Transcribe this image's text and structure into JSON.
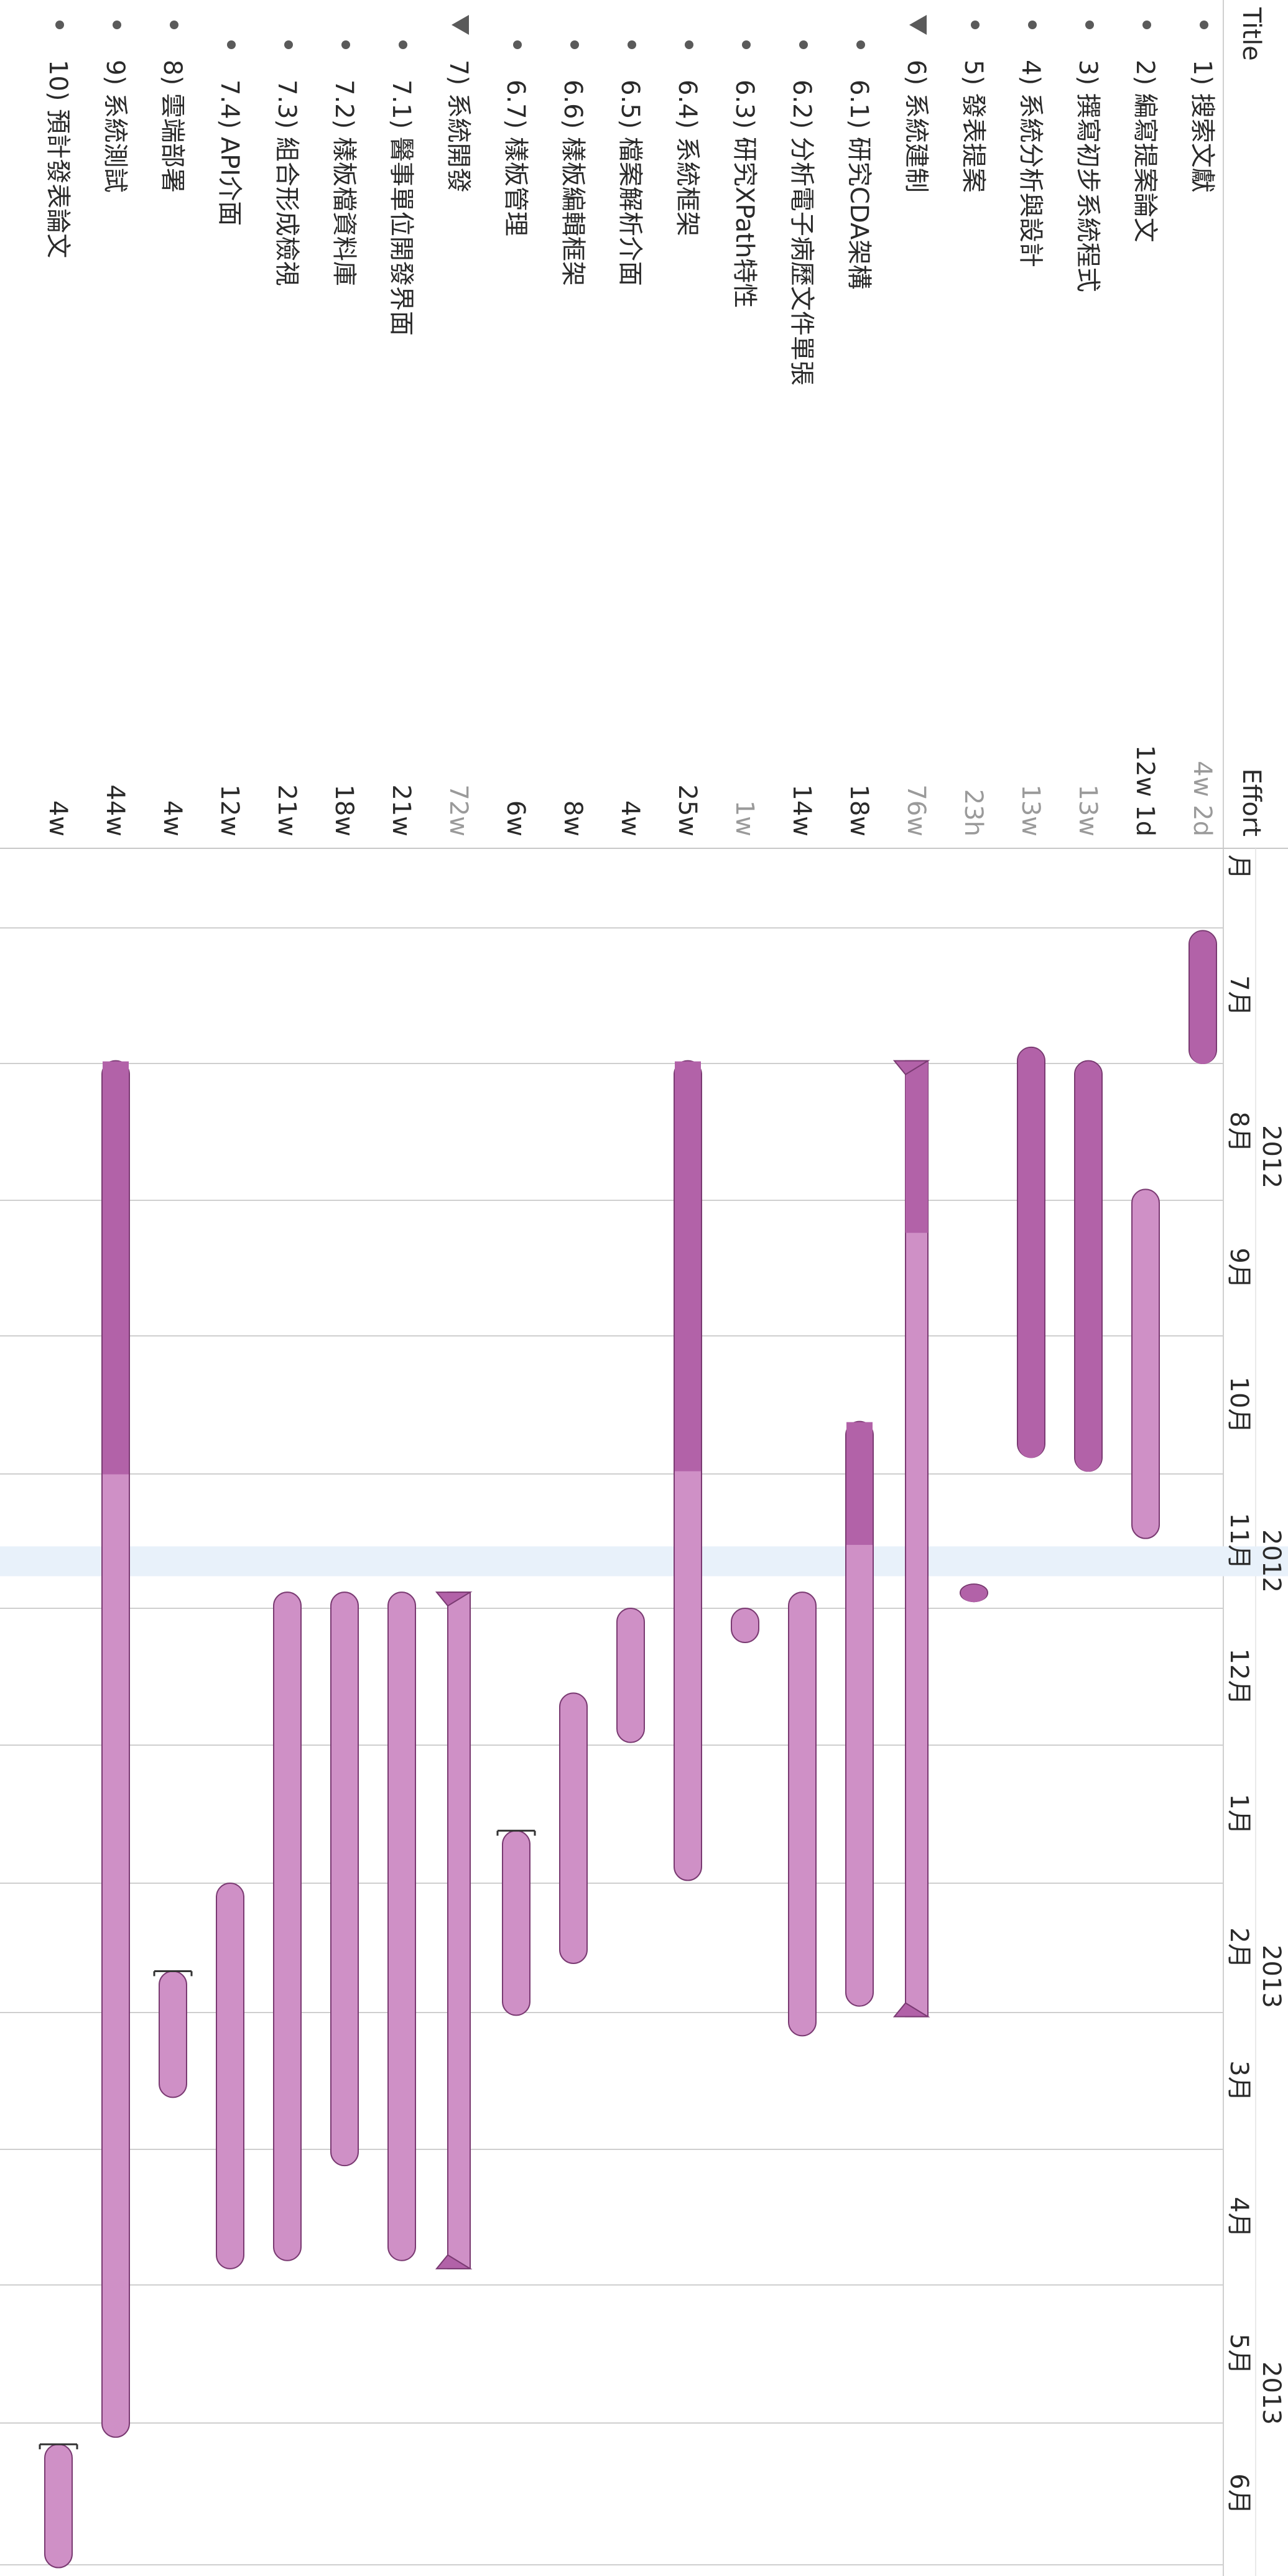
{
  "outline_header": {
    "title_col": "Title",
    "effort_col": "Effort"
  },
  "timeline_header": {
    "years": [
      "2012",
      "2012",
      "2013",
      "2013"
    ],
    "months": [
      "月",
      "7月",
      "8月",
      "9月",
      "10月",
      "11月",
      "12月",
      "1月",
      "2月",
      "3月",
      "4月",
      "5月",
      "6月"
    ]
  },
  "tasks": [
    {
      "number": "1)",
      "title": "搜索文獻",
      "effort": "4w 2d",
      "effort_dim": true,
      "level": 0,
      "group": false,
      "bullet": "dot",
      "bar_type": "bar",
      "start_month": 0.02,
      "end_month": 1.0,
      "progress": 1.0
    },
    {
      "number": "2)",
      "title": "編寫提案論文",
      "effort": "12w 1d",
      "effort_dim": false,
      "level": 0,
      "group": false,
      "bullet": "dot",
      "bar_type": "bar",
      "start_month": 1.92,
      "end_month": 4.48,
      "progress": 0.0
    },
    {
      "number": "3)",
      "title": "撰寫初步系統程式",
      "effort": "13w",
      "effort_dim": true,
      "level": 0,
      "group": false,
      "bullet": "dot",
      "bar_type": "bar",
      "start_month": 0.98,
      "end_month": 3.98,
      "progress": 1.0
    },
    {
      "number": "4)",
      "title": "系統分析與設計",
      "effort": "13w",
      "effort_dim": true,
      "level": 0,
      "group": false,
      "bullet": "dot",
      "bar_type": "bar",
      "start_month": 0.88,
      "end_month": 3.88,
      "progress": 1.0
    },
    {
      "number": "5)",
      "title": "發表提案",
      "effort": "23h",
      "effort_dim": true,
      "level": 0,
      "group": false,
      "bullet": "dot",
      "bar_type": "bar",
      "start_month": 4.82,
      "end_month": 4.95,
      "progress": 1.0
    },
    {
      "number": "6)",
      "title": "系統建制",
      "effort": "76w",
      "effort_dim": true,
      "level": 0,
      "group": true,
      "bullet": "triangle",
      "bar_type": "group",
      "start_month": 0.98,
      "end_month": 8.03,
      "progress": 0.18
    },
    {
      "number": "6.1)",
      "title": "研究CDA架構",
      "effort": "18w",
      "effort_dim": false,
      "level": 1,
      "group": false,
      "bullet": "dot",
      "bar_type": "bar",
      "start_month": 3.62,
      "end_month": 7.95,
      "progress": 0.21
    },
    {
      "number": "6.2)",
      "title": "分析電子病歷文件單張",
      "effort": "14w",
      "effort_dim": false,
      "level": 1,
      "group": false,
      "bullet": "dot",
      "bar_type": "bar",
      "start_month": 4.88,
      "end_month": 8.17,
      "progress": 0.0
    },
    {
      "number": "6.3)",
      "title": "研究XPath特性",
      "effort": "1w",
      "effort_dim": true,
      "level": 1,
      "group": false,
      "bullet": "dot",
      "bar_type": "bar",
      "start_month": 5.0,
      "end_month": 5.25,
      "progress": 0.0
    },
    {
      "number": "6.4)",
      "title": "系統框架",
      "effort": "25w",
      "effort_dim": false,
      "level": 1,
      "group": false,
      "bullet": "dot",
      "bar_type": "bar",
      "start_month": 0.98,
      "end_month": 6.98,
      "progress": 0.5
    },
    {
      "number": "6.5)",
      "title": "檔案解析介面",
      "effort": "4w",
      "effort_dim": false,
      "level": 1,
      "group": false,
      "bullet": "dot",
      "bar_type": "bar",
      "start_month": 5.0,
      "end_month": 5.98,
      "progress": 0.0
    },
    {
      "number": "6.6)",
      "title": "樣板編輯框架",
      "effort": "8w",
      "effort_dim": false,
      "level": 1,
      "group": false,
      "bullet": "dot",
      "bar_type": "bar",
      "start_month": 5.62,
      "end_month": 7.62,
      "progress": 0.0
    },
    {
      "number": "6.7)",
      "title": "樣板管理",
      "effort": "6w",
      "effort_dim": false,
      "level": 1,
      "group": false,
      "bullet": "dot",
      "bar_type": "bar",
      "start_month": 6.62,
      "end_month": 8.02,
      "progress": 0.0,
      "start_marker": true
    },
    {
      "number": "7)",
      "title": "系統開發",
      "effort": "72w",
      "effort_dim": true,
      "level": 0,
      "group": true,
      "bullet": "triangle",
      "bar_type": "group",
      "start_month": 4.88,
      "end_month": 9.88,
      "progress": 0.0
    },
    {
      "number": "7.1)",
      "title": "醫事單位開發界面",
      "effort": "21w",
      "effort_dim": false,
      "level": 1,
      "group": false,
      "bullet": "dot",
      "bar_type": "bar",
      "start_month": 4.88,
      "end_month": 9.82,
      "progress": 0.0
    },
    {
      "number": "7.2)",
      "title": "樣板檔資料庫",
      "effort": "18w",
      "effort_dim": false,
      "level": 1,
      "group": false,
      "bullet": "dot",
      "bar_type": "bar",
      "start_month": 4.88,
      "end_month": 9.12,
      "progress": 0.0
    },
    {
      "number": "7.3)",
      "title": "組合形成檢視",
      "effort": "21w",
      "effort_dim": false,
      "level": 1,
      "group": false,
      "bullet": "dot",
      "bar_type": "bar",
      "start_month": 4.88,
      "end_month": 9.82,
      "progress": 0.0
    },
    {
      "number": "7.4)",
      "title": "API介面",
      "effort": "12w",
      "effort_dim": false,
      "level": 1,
      "group": false,
      "bullet": "dot",
      "bar_type": "bar",
      "start_month": 7.0,
      "end_month": 9.88,
      "progress": 0.0
    },
    {
      "number": "8)",
      "title": "雲端部署",
      "effort": "4w",
      "effort_dim": false,
      "level": 0,
      "group": false,
      "bullet": "dot",
      "bar_type": "bar",
      "start_month": 7.68,
      "end_month": 8.62,
      "progress": 0.0,
      "start_marker": true
    },
    {
      "number": "9)",
      "title": "系統測試",
      "effort": "44w",
      "effort_dim": false,
      "level": 0,
      "group": false,
      "bullet": "dot",
      "bar_type": "bar",
      "start_month": 0.98,
      "end_month": 11.1,
      "progress": 0.3
    },
    {
      "number": "10)",
      "title": "預計發表論文",
      "effort": "4w",
      "effort_dim": false,
      "level": 0,
      "group": false,
      "bullet": "dot",
      "bar_type": "bar",
      "start_month": 11.15,
      "end_month": 12.02,
      "progress": 0.0,
      "start_marker": true
    }
  ],
  "today_month": 4.65,
  "colors": {
    "bar_fill": "#cf90c6",
    "bar_progress": "#b262a8",
    "bar_stroke": "#7a3a72",
    "grid": "#cfcfcf",
    "text": "#2a2a2a",
    "text_dim": "#9a9a9a",
    "today_band": "#e8f1fa",
    "bullet": "#5a5a5a"
  }
}
